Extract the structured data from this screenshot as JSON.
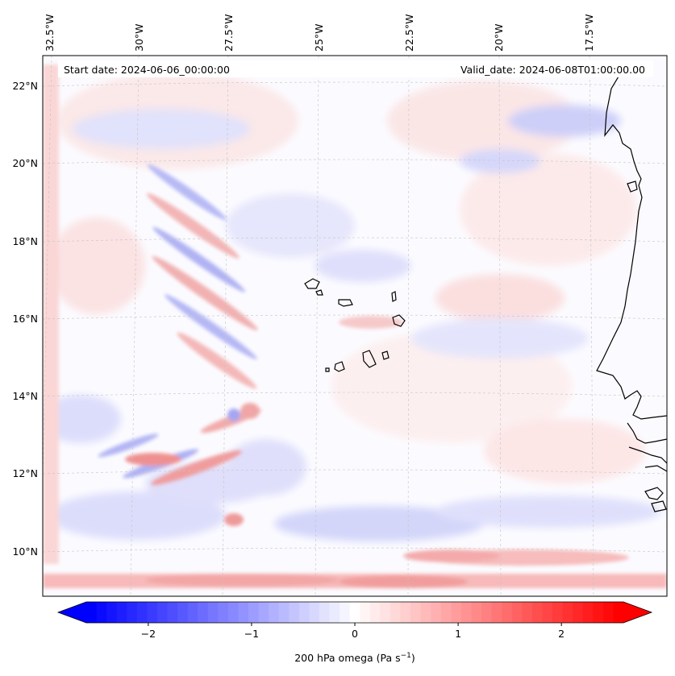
{
  "map": {
    "start_label": "Start date: 2024-06-06_00:00:00",
    "valid_label": "Valid_date: 2024-06-08T01:00:00.00",
    "lon_labels": [
      "32.5°W",
      "30°W",
      "27.5°W",
      "25°W",
      "22.5°W",
      "20°W",
      "17.5°W"
    ],
    "lat_labels": [
      "22°N",
      "20°N",
      "18°N",
      "16°N",
      "14°N",
      "12°N",
      "10°N"
    ],
    "colorbar": {
      "label": "200 hPa omega (Pa s",
      "label_sup": "−1",
      "label_close": ")",
      "ticks": [
        "−2",
        "−1",
        "0",
        "1",
        "2"
      ],
      "tick_values": [
        -2,
        -1,
        0,
        1,
        2
      ],
      "min": -2.6,
      "max": 2.6,
      "levels": 53,
      "colormap": "bwr"
    },
    "colors": {
      "negative": "#0000ff",
      "zero": "#ffffff",
      "positive": "#ff0000",
      "coast": "#000000",
      "grid": "#b0b0b0"
    }
  }
}
